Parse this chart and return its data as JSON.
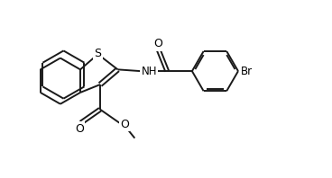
{
  "bg_color": "#ffffff",
  "line_color": "#1a1a1a",
  "line_width": 1.4,
  "text_color": "#000000",
  "font_size": 8.5,
  "figsize": [
    3.68,
    1.98
  ],
  "dpi": 100,
  "xlim": [
    0,
    9
  ],
  "ylim": [
    0,
    5.5
  ]
}
